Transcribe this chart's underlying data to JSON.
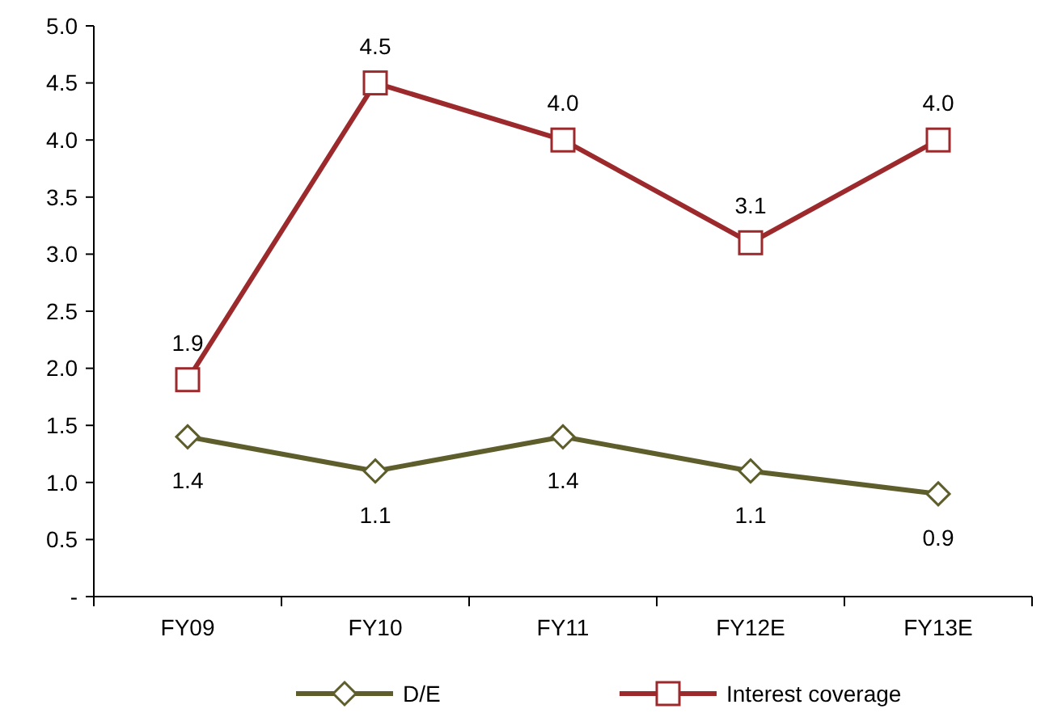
{
  "chart_data": {
    "type": "line",
    "categories": [
      "FY09",
      "FY10",
      "FY11",
      "FY12E",
      "FY13E"
    ],
    "series": [
      {
        "name": "D/E",
        "color": "#5e5e2c",
        "marker": "diamond",
        "values": [
          1.4,
          1.1,
          1.4,
          1.1,
          0.9
        ],
        "value_labels": [
          "1.4",
          "1.1",
          "1.4",
          "1.1",
          "0.9"
        ]
      },
      {
        "name": "Interest coverage",
        "color": "#9c2a2c",
        "marker": "square",
        "values": [
          1.9,
          4.5,
          4.0,
          3.1,
          4.0
        ],
        "value_labels": [
          "1.9",
          "4.5",
          "4.0",
          "3.1",
          "4.0"
        ]
      }
    ],
    "ylim": [
      0,
      5
    ],
    "yticks": [
      {
        "value": 0,
        "label": "-"
      },
      {
        "value": 0.5,
        "label": "0.5"
      },
      {
        "value": 1,
        "label": "1.0"
      },
      {
        "value": 1.5,
        "label": "1.5"
      },
      {
        "value": 2,
        "label": "2.0"
      },
      {
        "value": 2.5,
        "label": "2.5"
      },
      {
        "value": 3,
        "label": "3.0"
      },
      {
        "value": 3.5,
        "label": "3.5"
      },
      {
        "value": 4,
        "label": "4.0"
      },
      {
        "value": 4.5,
        "label": "4.5"
      },
      {
        "value": 5,
        "label": "5.0"
      }
    ],
    "grid": false,
    "legend": "bottom"
  }
}
